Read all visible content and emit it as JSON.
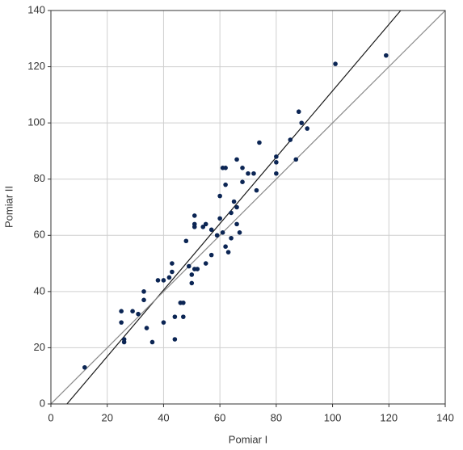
{
  "chart_data": {
    "type": "scatter",
    "x_label": "Pomiar I",
    "y_label": "Pomiar II",
    "xlim": [
      0,
      140
    ],
    "ylim": [
      0,
      140
    ],
    "xticks": [
      0,
      20,
      40,
      60,
      80,
      100,
      120,
      140
    ],
    "yticks": [
      0,
      20,
      40,
      60,
      80,
      100,
      120,
      140
    ],
    "grid": true,
    "series": [
      {
        "type": "scatter",
        "color": "#0b2554",
        "x": [
          12,
          25,
          25,
          26,
          26,
          29,
          31,
          33,
          33,
          34,
          36,
          38,
          40,
          40,
          42,
          43,
          43,
          44,
          44,
          46,
          47,
          47,
          48,
          49,
          50,
          50,
          51,
          51,
          51,
          51,
          52,
          54,
          55,
          55,
          57,
          57,
          59,
          60,
          60,
          61,
          62,
          61,
          62,
          62,
          63,
          64,
          64,
          65,
          66,
          66,
          66,
          67,
          68,
          68,
          70,
          72,
          73,
          74,
          80,
          80,
          80,
          85,
          87,
          88,
          89,
          91,
          101,
          119
        ],
        "values": [
          13,
          33,
          29,
          23,
          22,
          33,
          32,
          40,
          37,
          27,
          22,
          44,
          29,
          44,
          45,
          50,
          47,
          23,
          31,
          36,
          36,
          31,
          58,
          49,
          43,
          46,
          67,
          64,
          63,
          48,
          48,
          63,
          64,
          50,
          53,
          62,
          60,
          74,
          66,
          84,
          84,
          61,
          78,
          56,
          54,
          59,
          68,
          72,
          70,
          64,
          87,
          61,
          84,
          79,
          82,
          82,
          76,
          93,
          88,
          86,
          82,
          94,
          87,
          104,
          100,
          98,
          121,
          124
        ]
      },
      {
        "type": "line",
        "color": "#1a1a1a",
        "x": [
          5.7,
          124.2
        ],
        "values": [
          0,
          140
        ]
      },
      {
        "type": "line",
        "color": "#8a8a8a",
        "x": [
          0,
          140
        ],
        "values": [
          0,
          140
        ]
      }
    ]
  }
}
